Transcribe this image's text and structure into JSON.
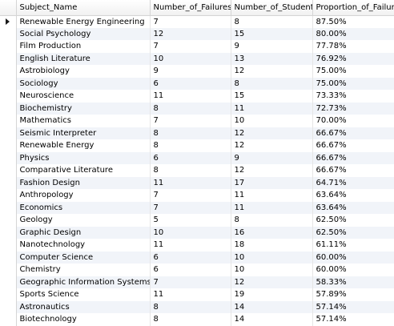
{
  "grid": {
    "columns": [
      "Subject_Name",
      "Number_of_Failures",
      "Number_of_Students",
      "Proportion_of_Failures"
    ],
    "rows": [
      [
        "Renewable Energy Engineering",
        "7",
        "8",
        "87.50%"
      ],
      [
        "Social Psychology",
        "12",
        "15",
        "80.00%"
      ],
      [
        "Film Production",
        "7",
        "9",
        "77.78%"
      ],
      [
        "English Literature",
        "10",
        "13",
        "76.92%"
      ],
      [
        "Astrobiology",
        "9",
        "12",
        "75.00%"
      ],
      [
        "Sociology",
        "6",
        "8",
        "75.00%"
      ],
      [
        "Neuroscience",
        "11",
        "15",
        "73.33%"
      ],
      [
        "Biochemistry",
        "8",
        "11",
        "72.73%"
      ],
      [
        "Mathematics",
        "7",
        "10",
        "70.00%"
      ],
      [
        "Seismic Interpreter",
        "8",
        "12",
        "66.67%"
      ],
      [
        "Renewable Energy",
        "8",
        "12",
        "66.67%"
      ],
      [
        "Physics",
        "6",
        "9",
        "66.67%"
      ],
      [
        "Comparative Literature",
        "8",
        "12",
        "66.67%"
      ],
      [
        "Fashion Design",
        "11",
        "17",
        "64.71%"
      ],
      [
        "Anthropology",
        "7",
        "11",
        "63.64%"
      ],
      [
        "Economics",
        "7",
        "11",
        "63.64%"
      ],
      [
        "Geology",
        "5",
        "8",
        "62.50%"
      ],
      [
        "Graphic Design",
        "10",
        "16",
        "62.50%"
      ],
      [
        "Nanotechnology",
        "11",
        "18",
        "61.11%"
      ],
      [
        "Computer Science",
        "6",
        "10",
        "60.00%"
      ],
      [
        "Chemistry",
        "6",
        "10",
        "60.00%"
      ],
      [
        "Geographic Information Systems",
        "7",
        "12",
        "58.33%"
      ],
      [
        "Sports Science",
        "11",
        "19",
        "57.89%"
      ],
      [
        "Astronautics",
        "8",
        "14",
        "57.14%"
      ],
      [
        "Biotechnology",
        "8",
        "14",
        "57.14%"
      ]
    ],
    "current_row": 0,
    "icons": {
      "current_row_marker": "right-triangle-icon"
    }
  }
}
